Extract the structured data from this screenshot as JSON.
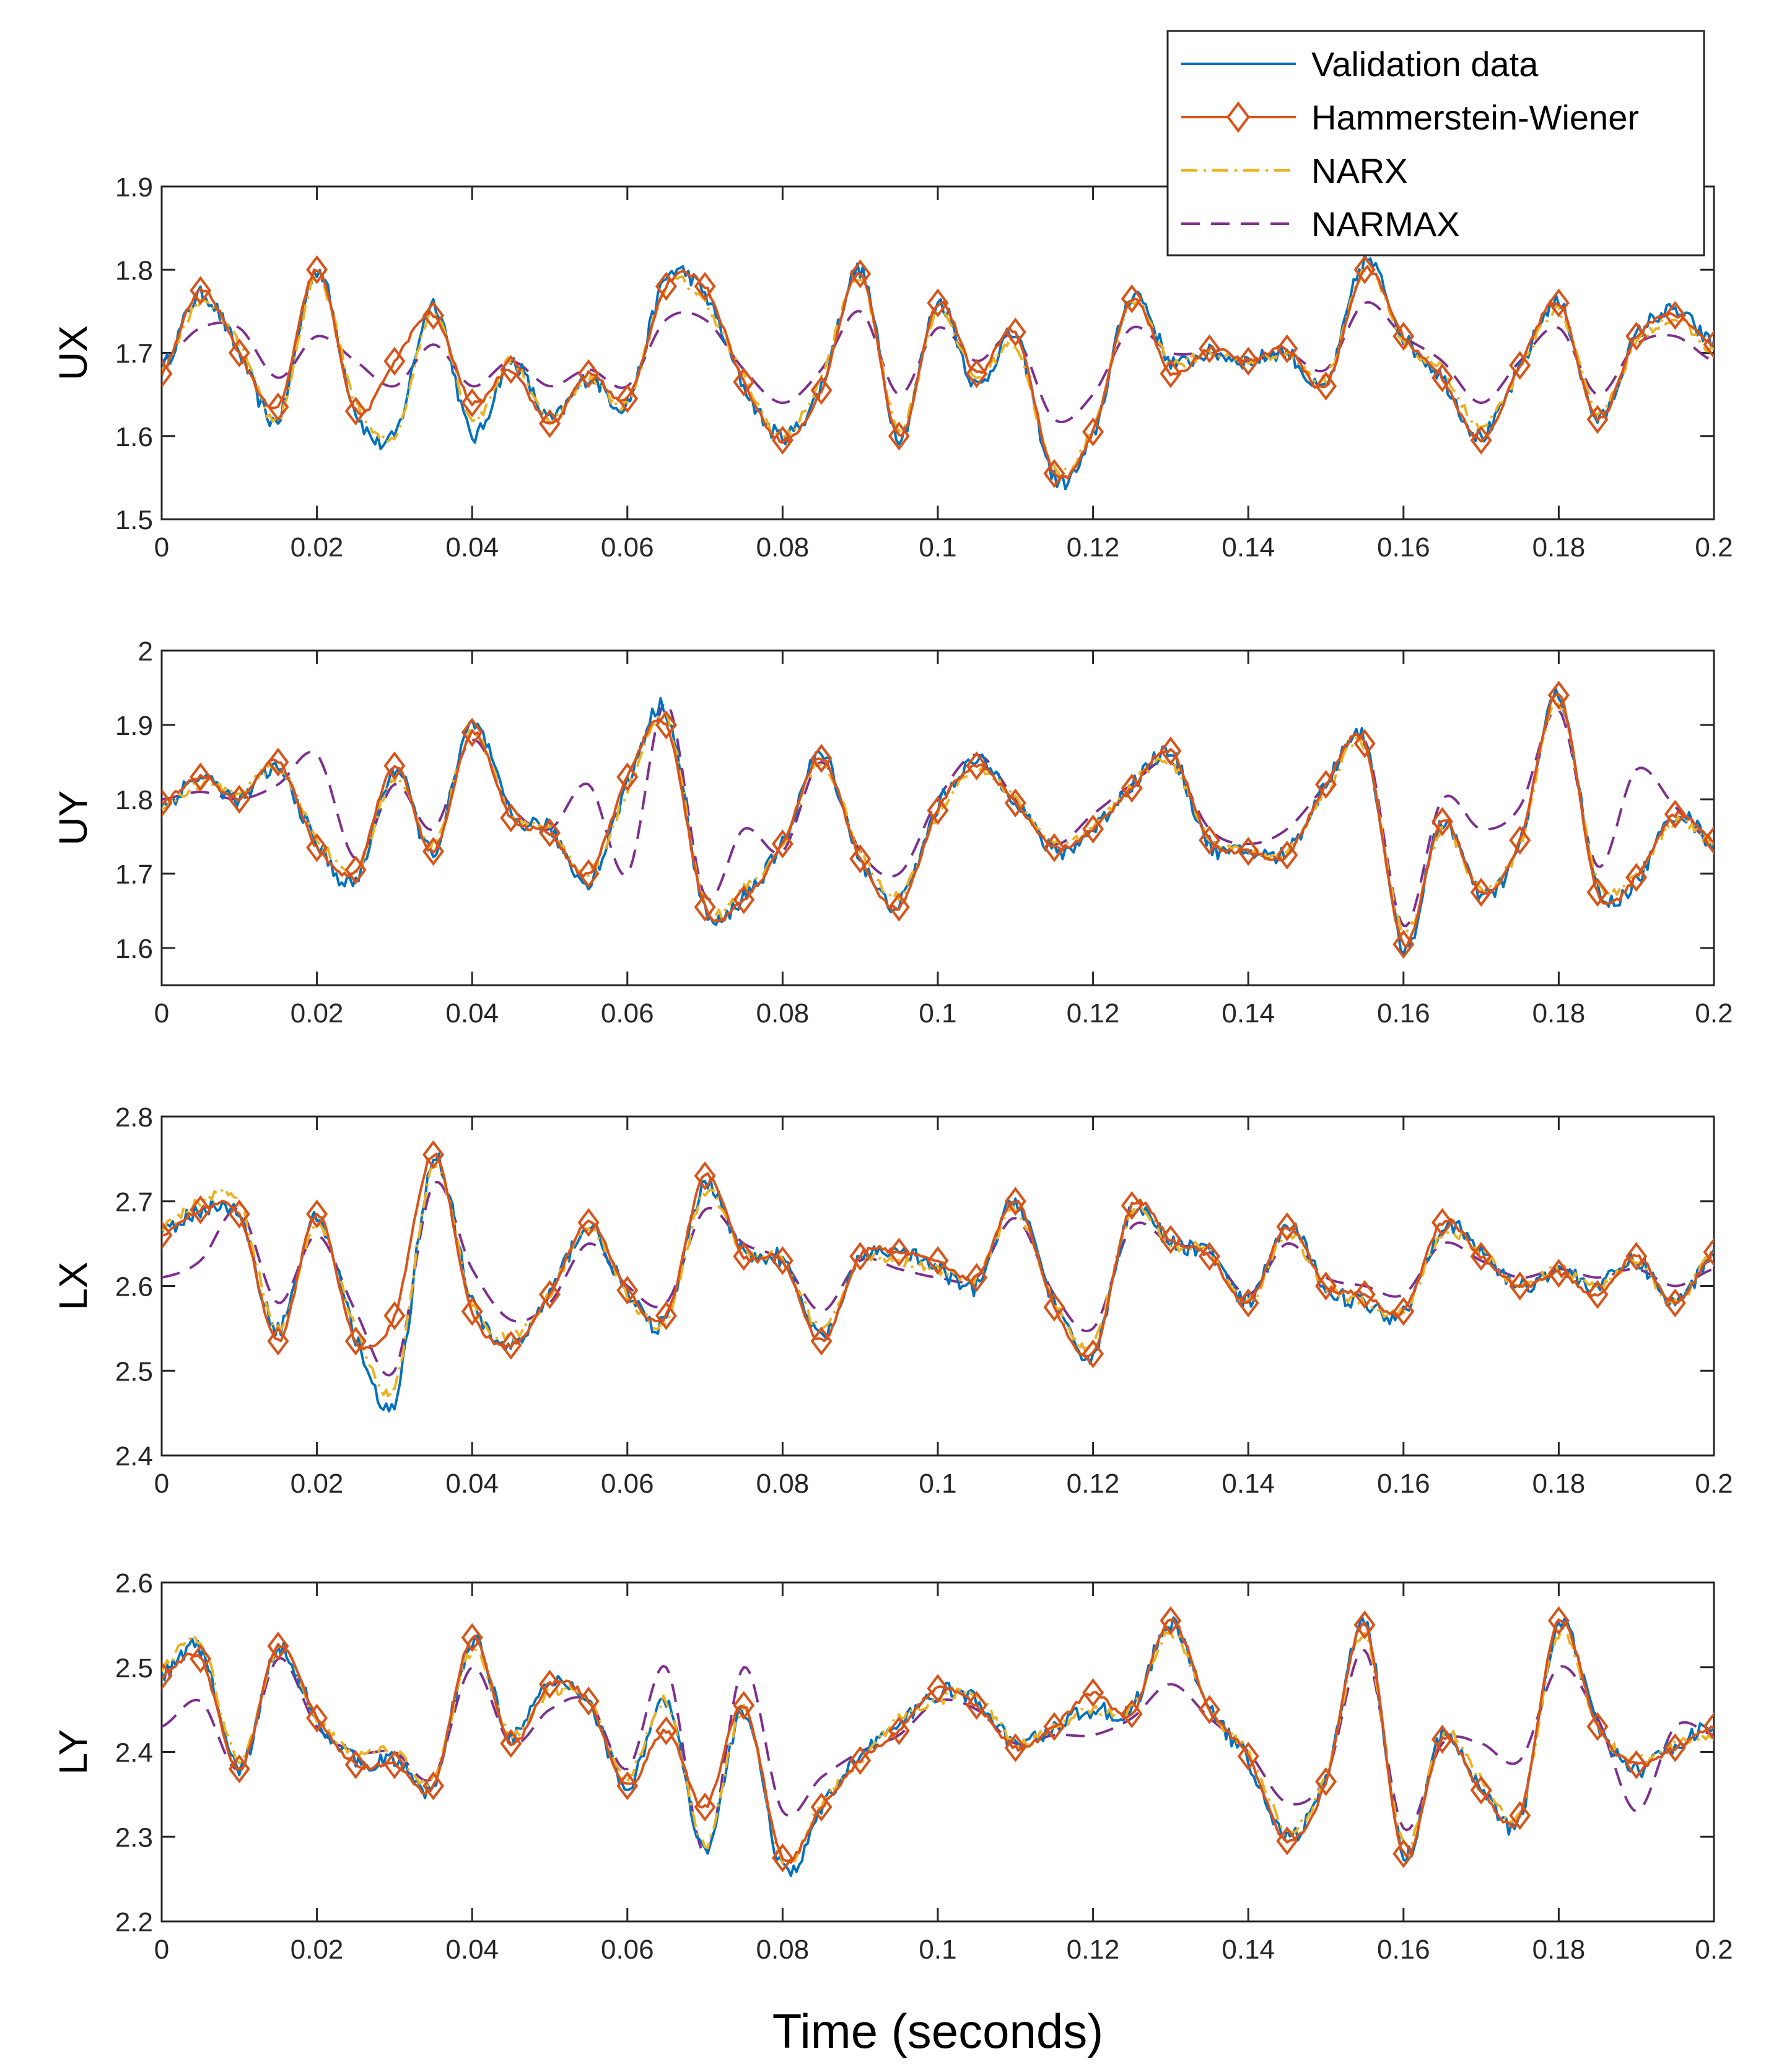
{
  "chart_data": {
    "type": "line",
    "xlabel": "Time (seconds)",
    "x_range": [
      0,
      0.2
    ],
    "x_ticks": [
      "0",
      "0.02",
      "0.04",
      "0.06",
      "0.08",
      "0.1",
      "0.12",
      "0.14",
      "0.16",
      "0.18",
      "0.2"
    ],
    "x_sample": [
      0,
      0.005,
      0.01,
      0.015,
      0.02,
      0.025,
      0.03,
      0.035,
      0.04,
      0.045,
      0.05,
      0.055,
      0.06,
      0.065,
      0.07,
      0.075,
      0.08,
      0.085,
      0.09,
      0.095,
      0.1,
      0.105,
      0.11,
      0.115,
      0.12,
      0.125,
      0.13,
      0.135,
      0.14,
      0.145,
      0.15,
      0.155,
      0.16,
      0.165,
      0.17,
      0.175,
      0.18,
      0.185,
      0.19,
      0.195,
      0.2
    ],
    "legend": {
      "location": "top-right",
      "entries": [
        "Validation data",
        "Hammerstein-Wiener",
        "NARX",
        "NARMAX"
      ]
    },
    "colors": {
      "validation": "#0072BD",
      "hammerstein": "#D95319",
      "narx": "#EDB120",
      "narmax": "#7E2F8E"
    },
    "subplots": [
      {
        "ylabel": "UX",
        "ylim": [
          1.5,
          1.9
        ],
        "y_ticks": [
          "1.5",
          "1.6",
          "1.7",
          "1.8",
          "1.9"
        ],
        "series": [
          {
            "name": "Validation data",
            "values": [
              1.68,
              1.77,
              1.7,
              1.62,
              1.8,
              1.63,
              1.6,
              1.76,
              1.6,
              1.69,
              1.62,
              1.67,
              1.64,
              1.79,
              1.77,
              1.66,
              1.6,
              1.66,
              1.8,
              1.6,
              1.76,
              1.66,
              1.72,
              1.55,
              1.6,
              1.77,
              1.69,
              1.7,
              1.69,
              1.7,
              1.66,
              1.81,
              1.72,
              1.67,
              1.6,
              1.68,
              1.76,
              1.62,
              1.72,
              1.75,
              1.71
            ]
          },
          {
            "name": "Hammerstein-Wiener",
            "values": [
              1.675,
              1.775,
              1.7,
              1.635,
              1.8,
              1.63,
              1.69,
              1.745,
              1.64,
              1.68,
              1.615,
              1.675,
              1.645,
              1.78,
              1.78,
              1.665,
              1.595,
              1.655,
              1.795,
              1.6,
              1.76,
              1.675,
              1.725,
              1.555,
              1.605,
              1.765,
              1.675,
              1.705,
              1.69,
              1.705,
              1.66,
              1.8,
              1.72,
              1.67,
              1.595,
              1.685,
              1.76,
              1.62,
              1.72,
              1.745,
              1.71
            ]
          },
          {
            "name": "NARX",
            "values": [
              1.68,
              1.76,
              1.71,
              1.62,
              1.79,
              1.64,
              1.6,
              1.75,
              1.62,
              1.69,
              1.62,
              1.67,
              1.64,
              1.78,
              1.76,
              1.67,
              1.6,
              1.67,
              1.79,
              1.61,
              1.75,
              1.67,
              1.71,
              1.56,
              1.61,
              1.76,
              1.69,
              1.7,
              1.69,
              1.7,
              1.67,
              1.8,
              1.71,
              1.68,
              1.61,
              1.68,
              1.75,
              1.63,
              1.71,
              1.74,
              1.7
            ]
          },
          {
            "name": "NARMAX",
            "values": [
              1.69,
              1.73,
              1.73,
              1.67,
              1.72,
              1.69,
              1.66,
              1.71,
              1.66,
              1.69,
              1.66,
              1.68,
              1.66,
              1.74,
              1.74,
              1.68,
              1.64,
              1.68,
              1.75,
              1.65,
              1.73,
              1.69,
              1.72,
              1.62,
              1.65,
              1.73,
              1.7,
              1.7,
              1.69,
              1.7,
              1.68,
              1.76,
              1.72,
              1.69,
              1.64,
              1.69,
              1.73,
              1.65,
              1.71,
              1.72,
              1.69
            ]
          }
        ]
      },
      {
        "ylabel": "UY",
        "ylim": [
          1.55,
          2.0
        ],
        "y_ticks": [
          "1.6",
          "1.7",
          "1.8",
          "1.9",
          "2"
        ],
        "series": [
          {
            "name": "Validation data",
            "values": [
              1.79,
              1.83,
              1.8,
              1.84,
              1.74,
              1.69,
              1.84,
              1.73,
              1.9,
              1.78,
              1.76,
              1.69,
              1.82,
              1.92,
              1.65,
              1.67,
              1.74,
              1.86,
              1.72,
              1.66,
              1.79,
              1.85,
              1.8,
              1.73,
              1.76,
              1.82,
              1.86,
              1.74,
              1.73,
              1.73,
              1.82,
              1.88,
              1.6,
              1.77,
              1.67,
              1.74,
              1.94,
              1.68,
              1.69,
              1.78,
              1.74
            ]
          },
          {
            "name": "Hammerstein-Wiener",
            "values": [
              1.795,
              1.83,
              1.8,
              1.85,
              1.735,
              1.705,
              1.845,
              1.73,
              1.89,
              1.775,
              1.755,
              1.7,
              1.83,
              1.9,
              1.655,
              1.665,
              1.74,
              1.855,
              1.72,
              1.655,
              1.785,
              1.845,
              1.795,
              1.735,
              1.76,
              1.815,
              1.865,
              1.745,
              1.73,
              1.725,
              1.82,
              1.875,
              1.605,
              1.77,
              1.675,
              1.745,
              1.94,
              1.675,
              1.695,
              1.78,
              1.745
            ]
          },
          {
            "name": "NARX",
            "values": [
              1.79,
              1.82,
              1.81,
              1.84,
              1.75,
              1.7,
              1.83,
              1.74,
              1.89,
              1.78,
              1.76,
              1.7,
              1.81,
              1.91,
              1.66,
              1.68,
              1.74,
              1.85,
              1.73,
              1.67,
              1.78,
              1.84,
              1.8,
              1.74,
              1.76,
              1.82,
              1.85,
              1.75,
              1.73,
              1.73,
              1.81,
              1.87,
              1.62,
              1.76,
              1.68,
              1.74,
              1.93,
              1.69,
              1.7,
              1.77,
              1.74
            ]
          },
          {
            "name": "NARMAX",
            "values": [
              1.8,
              1.81,
              1.8,
              1.82,
              1.86,
              1.72,
              1.82,
              1.76,
              1.88,
              1.79,
              1.76,
              1.82,
              1.7,
              1.93,
              1.67,
              1.76,
              1.73,
              1.85,
              1.73,
              1.7,
              1.8,
              1.86,
              1.8,
              1.74,
              1.78,
              1.82,
              1.85,
              1.76,
              1.74,
              1.76,
              1.82,
              1.88,
              1.63,
              1.8,
              1.76,
              1.79,
              1.92,
              1.71,
              1.84,
              1.79,
              1.74
            ]
          }
        ]
      },
      {
        "ylabel": "LX",
        "ylim": [
          2.4,
          2.8
        ],
        "y_ticks": [
          "2.4",
          "2.5",
          "2.6",
          "2.7",
          "2.8"
        ],
        "series": [
          {
            "name": "Validation data",
            "values": [
              2.66,
              2.69,
              2.68,
              2.55,
              2.68,
              2.54,
              2.46,
              2.75,
              2.58,
              2.53,
              2.59,
              2.67,
              2.59,
              2.56,
              2.72,
              2.64,
              2.63,
              2.54,
              2.63,
              2.64,
              2.62,
              2.6,
              2.7,
              2.58,
              2.52,
              2.69,
              2.65,
              2.64,
              2.58,
              2.67,
              2.6,
              2.58,
              2.57,
              2.67,
              2.64,
              2.6,
              2.62,
              2.6,
              2.63,
              2.58,
              2.64
            ]
          },
          {
            "name": "Hammerstein-Wiener",
            "values": [
              2.66,
              2.69,
              2.685,
              2.535,
              2.685,
              2.535,
              2.565,
              2.755,
              2.57,
              2.53,
              2.59,
              2.675,
              2.595,
              2.565,
              2.73,
              2.635,
              2.63,
              2.535,
              2.635,
              2.64,
              2.63,
              2.61,
              2.7,
              2.575,
              2.52,
              2.695,
              2.655,
              2.635,
              2.58,
              2.67,
              2.6,
              2.59,
              2.57,
              2.675,
              2.635,
              2.6,
              2.615,
              2.59,
              2.635,
              2.58,
              2.64
            ]
          },
          {
            "name": "NARX",
            "values": [
              2.67,
              2.7,
              2.7,
              2.55,
              2.67,
              2.55,
              2.48,
              2.74,
              2.58,
              2.54,
              2.59,
              2.67,
              2.59,
              2.56,
              2.71,
              2.64,
              2.63,
              2.55,
              2.63,
              2.63,
              2.62,
              2.61,
              2.69,
              2.58,
              2.53,
              2.69,
              2.65,
              2.64,
              2.58,
              2.66,
              2.6,
              2.58,
              2.57,
              2.66,
              2.64,
              2.6,
              2.62,
              2.6,
              2.63,
              2.58,
              2.64
            ]
          },
          {
            "name": "NARMAX",
            "values": [
              2.61,
              2.63,
              2.69,
              2.58,
              2.66,
              2.57,
              2.5,
              2.72,
              2.62,
              2.56,
              2.58,
              2.65,
              2.6,
              2.58,
              2.69,
              2.65,
              2.63,
              2.57,
              2.63,
              2.62,
              2.61,
              2.61,
              2.68,
              2.59,
              2.55,
              2.67,
              2.65,
              2.64,
              2.59,
              2.65,
              2.61,
              2.6,
              2.59,
              2.65,
              2.63,
              2.61,
              2.62,
              2.61,
              2.62,
              2.6,
              2.62
            ]
          }
        ]
      },
      {
        "ylabel": "LY",
        "ylim": [
          2.2,
          2.6
        ],
        "y_ticks": [
          "2.2",
          "2.3",
          "2.4",
          "2.5",
          "2.6"
        ],
        "series": [
          {
            "name": "Validation data",
            "values": [
              2.49,
              2.52,
              2.38,
              2.52,
              2.44,
              2.39,
              2.39,
              2.36,
              2.53,
              2.42,
              2.48,
              2.46,
              2.36,
              2.46,
              2.28,
              2.45,
              2.26,
              2.33,
              2.4,
              2.43,
              2.47,
              2.46,
              2.41,
              2.43,
              2.45,
              2.45,
              2.55,
              2.45,
              2.39,
              2.3,
              2.37,
              2.55,
              2.28,
              2.42,
              2.36,
              2.32,
              2.55,
              2.43,
              2.38,
              2.41,
              2.43
            ]
          },
          {
            "name": "Hammerstein-Wiener",
            "values": [
              2.49,
              2.51,
              2.38,
              2.525,
              2.44,
              2.385,
              2.385,
              2.36,
              2.535,
              2.41,
              2.48,
              2.46,
              2.36,
              2.425,
              2.335,
              2.455,
              2.275,
              2.335,
              2.39,
              2.425,
              2.475,
              2.455,
              2.405,
              2.43,
              2.47,
              2.445,
              2.555,
              2.45,
              2.395,
              2.295,
              2.365,
              2.55,
              2.28,
              2.415,
              2.355,
              2.325,
              2.555,
              2.43,
              2.385,
              2.405,
              2.43
            ]
          },
          {
            "name": "NARX",
            "values": [
              2.5,
              2.53,
              2.39,
              2.52,
              2.44,
              2.4,
              2.4,
              2.37,
              2.52,
              2.42,
              2.47,
              2.46,
              2.37,
              2.46,
              2.29,
              2.45,
              2.27,
              2.34,
              2.39,
              2.44,
              2.46,
              2.47,
              2.41,
              2.43,
              2.45,
              2.45,
              2.54,
              2.45,
              2.4,
              2.31,
              2.37,
              2.54,
              2.29,
              2.42,
              2.37,
              2.33,
              2.54,
              2.43,
              2.39,
              2.41,
              2.42
            ]
          },
          {
            "name": "NARMAX",
            "values": [
              2.43,
              2.46,
              2.38,
              2.51,
              2.43,
              2.4,
              2.4,
              2.37,
              2.5,
              2.41,
              2.45,
              2.46,
              2.38,
              2.5,
              2.28,
              2.5,
              2.33,
              2.37,
              2.4,
              2.42,
              2.46,
              2.45,
              2.41,
              2.42,
              2.42,
              2.44,
              2.48,
              2.44,
              2.4,
              2.34,
              2.37,
              2.52,
              2.31,
              2.41,
              2.41,
              2.39,
              2.5,
              2.44,
              2.33,
              2.43,
              2.42
            ]
          }
        ]
      }
    ]
  }
}
